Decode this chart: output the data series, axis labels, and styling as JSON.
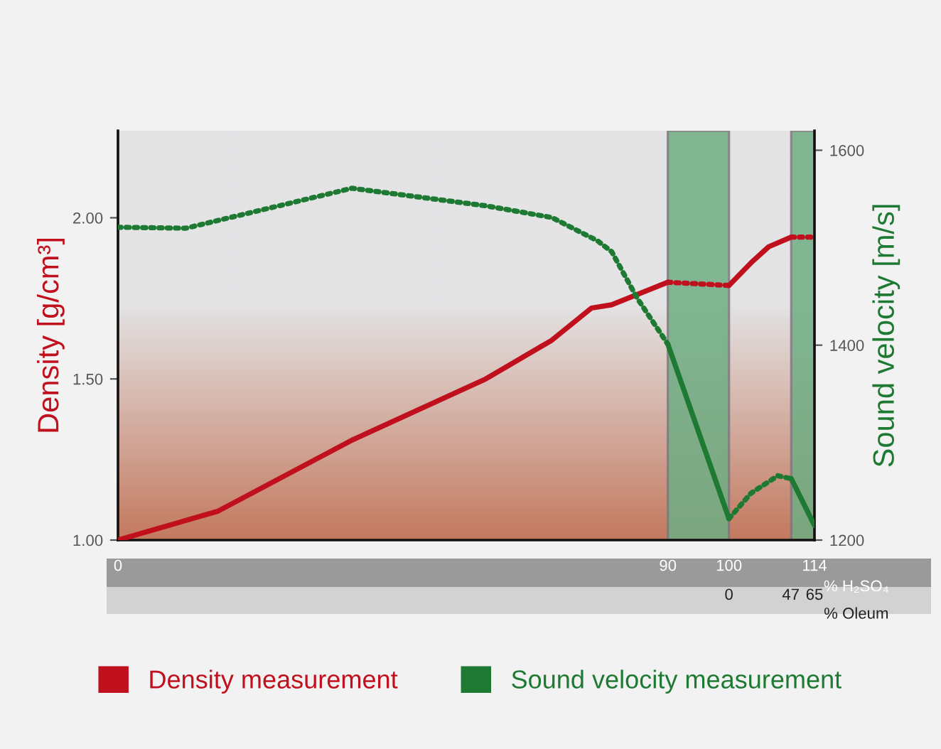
{
  "chart_data": {
    "type": "line",
    "xlabel": "% H₂SO₄",
    "x2label": "% Oleum",
    "ylabel": "Density [g/cm³]",
    "y2label": "Sound velocity [m/s]",
    "xlim": [
      0,
      114
    ],
    "xticks": [
      0,
      90,
      100,
      114
    ],
    "x2lim": [
      0,
      65
    ],
    "x2ticks": [
      0,
      47,
      65
    ],
    "ylim": [
      1.0,
      2.27
    ],
    "yticks": [
      {
        "value": 1.0,
        "label": "1.00"
      },
      {
        "value": 1.5,
        "label": "1.50"
      },
      {
        "value": 2.0,
        "label": "2.00"
      }
    ],
    "y2lim": [
      1200,
      1620
    ],
    "y2ticks": [
      1200,
      1400,
      1600
    ],
    "bands": [
      {
        "axis": "x",
        "from": 90,
        "to": 100,
        "color": "#6fae84"
      },
      {
        "axis": "x",
        "from": 110.2,
        "to": 114,
        "color": "#6fae84"
      }
    ],
    "grid": false,
    "legend": "bottom",
    "marker": "none",
    "series": [
      {
        "name": "Density measurement",
        "color": "#c0101e",
        "line_style": "solid",
        "x": [
          0,
          16.4,
          38.3,
          60.2,
          71,
          77.5,
          80.8,
          90
        ],
        "values": [
          1.0,
          1.09,
          1.31,
          1.5,
          1.62,
          1.72,
          1.73,
          1.8
        ]
      },
      {
        "color": "#c0101e",
        "line_style": "dotted",
        "x": [
          90,
          100
        ],
        "values": [
          1.8,
          1.79
        ]
      },
      {
        "color": "#c0101e",
        "line_style": "solid",
        "x": [
          100,
          103.6,
          106.5,
          110.2
        ],
        "values": [
          1.79,
          1.86,
          1.91,
          1.94
        ]
      },
      {
        "color": "#c0101e",
        "line_style": "dotted",
        "x": [
          110.2,
          114
        ],
        "values": [
          1.94,
          1.94
        ]
      },
      {
        "name": "Sound velocity measurement",
        "color": "#1e7a32",
        "line_style": "dotted",
        "axis": "y2",
        "x": [
          0,
          11.1,
          38.3,
          60.2,
          71,
          78.5,
          80.8,
          85,
          90
        ],
        "values": [
          1521,
          1520,
          1561,
          1543,
          1531,
          1507,
          1496,
          1448,
          1401
        ]
      },
      {
        "color": "#1e7a32",
        "line_style": "solid",
        "axis": "y2",
        "x": [
          90,
          100
        ],
        "values": [
          1401,
          1222
        ]
      },
      {
        "color": "#1e7a32",
        "line_style": "dotted",
        "axis": "y2",
        "x": [
          100,
          103.6,
          108.0,
          110.2
        ],
        "values": [
          1222,
          1248,
          1266,
          1263
        ]
      },
      {
        "color": "#1e7a32",
        "line_style": "solid",
        "axis": "y2",
        "x": [
          110.2,
          114
        ],
        "values": [
          1263,
          1215
        ]
      }
    ]
  }
}
